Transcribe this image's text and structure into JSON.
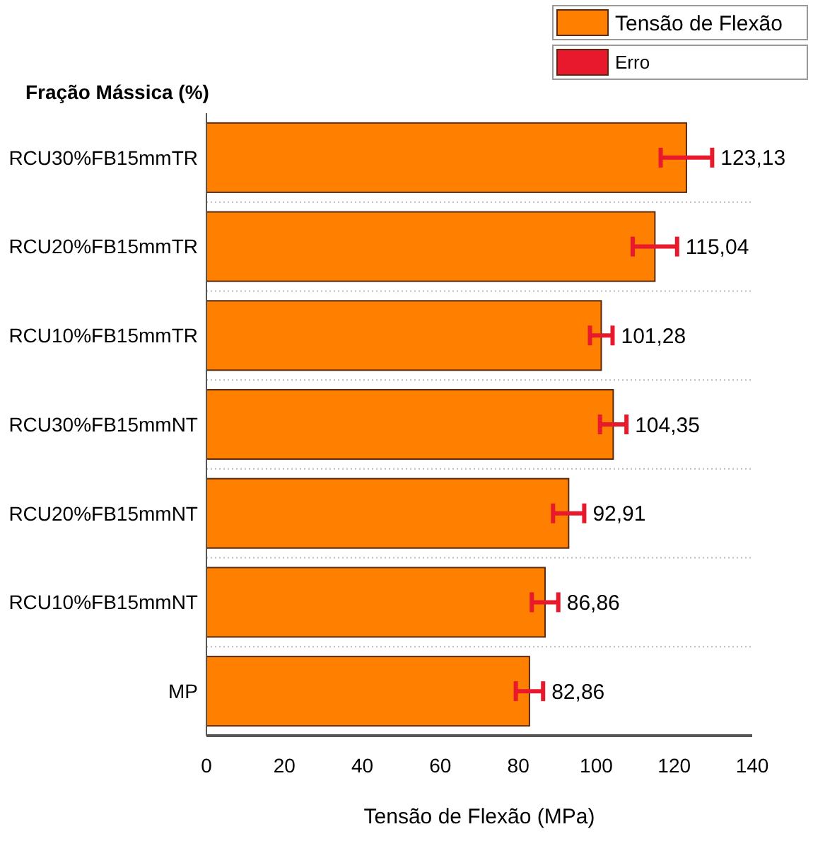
{
  "chart_data": {
    "type": "bar",
    "orientation": "horizontal",
    "ylabel": "Fração Mássica (%)",
    "xlabel": "Tensão de Flexão (MPa)",
    "categories": [
      "RCU30%FB15mmTR",
      "RCU20%FB15mmTR",
      "RCU10%FB15mmTR",
      "RCU30%FB15mmNT",
      "RCU20%FB15mmNT",
      "RCU10%FB15mmNT",
      "MP"
    ],
    "series": [
      {
        "name": "Tensão de Flexão",
        "color": "#ff8000",
        "values": [
          123.13,
          115.04,
          101.28,
          104.35,
          92.91,
          86.86,
          82.86
        ],
        "errors": [
          6.6,
          5.7,
          2.9,
          3.4,
          4,
          3.4,
          3.5
        ],
        "value_labels": [
          "123,13",
          "115,04",
          "101,28",
          "104,35",
          "92,91",
          "86,86",
          "82,86"
        ]
      },
      {
        "name": "Erro",
        "color": "#e8192c",
        "values": [
          null,
          null,
          null,
          null,
          null,
          null,
          null
        ]
      }
    ],
    "xlim": [
      0,
      140
    ],
    "xticks": [
      0,
      20,
      40,
      60,
      80,
      100,
      120,
      140
    ],
    "grid": "y",
    "legend": "top right"
  }
}
